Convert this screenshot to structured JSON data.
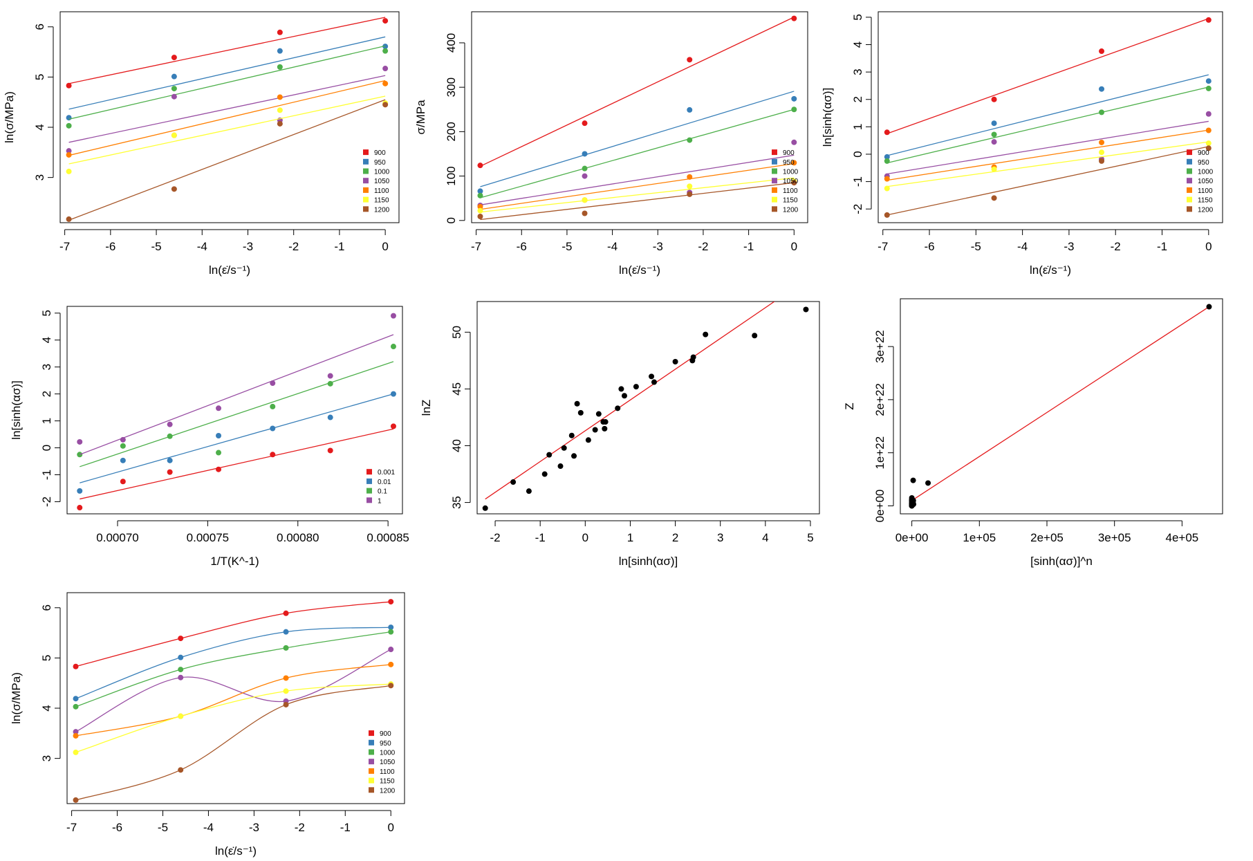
{
  "colors": {
    "900": "#e41a1c",
    "950": "#377eb8",
    "1000": "#4daf4a",
    "1050": "#984ea3",
    "1100": "#ff7f00",
    "1150": "#ffff33",
    "1200": "#a65628",
    "black": "#000000"
  },
  "chart_data": [
    {
      "id": "p1",
      "type": "scatter",
      "fit": "linear",
      "xlabel": "ln(ε̇/s⁻¹)",
      "ylabel": "ln(σ/MPa)",
      "xlim": [
        -7.1,
        0.3
      ],
      "ylim": [
        2.1,
        6.3
      ],
      "xticks": [
        -7,
        -6,
        -5,
        -4,
        -3,
        -2,
        -1,
        0
      ],
      "yticks": [
        3,
        4,
        5,
        6
      ],
      "x": [
        -6.91,
        -4.61,
        -2.3,
        0.0
      ],
      "legend": {
        "position": "bottom-right",
        "labels": [
          "900",
          "950",
          "1000",
          "1050",
          "1100",
          "1150",
          "1200"
        ]
      },
      "series": [
        {
          "name": "900",
          "color": "#e41a1c",
          "values": [
            4.83,
            5.39,
            5.89,
            6.12
          ],
          "fit": [
            4.87,
            6.19
          ]
        },
        {
          "name": "950",
          "color": "#377eb8",
          "values": [
            4.19,
            5.01,
            5.52,
            5.61
          ],
          "fit": [
            4.36,
            5.8
          ]
        },
        {
          "name": "1000",
          "color": "#4daf4a",
          "values": [
            4.03,
            4.77,
            5.2,
            5.52
          ],
          "fit": [
            4.16,
            5.62
          ]
        },
        {
          "name": "1050",
          "color": "#984ea3",
          "values": [
            3.53,
            4.61,
            4.14,
            5.17
          ],
          "fit": [
            3.7,
            5.03
          ]
        },
        {
          "name": "1100",
          "color": "#ff7f00",
          "values": [
            3.45,
            3.84,
            4.6,
            4.87
          ],
          "fit": [
            3.44,
            4.93
          ]
        },
        {
          "name": "1150",
          "color": "#ffff33",
          "values": [
            3.12,
            3.84,
            4.34,
            4.48
          ],
          "fit": [
            3.27,
            4.62
          ]
        },
        {
          "name": "1200",
          "color": "#a65628",
          "values": [
            2.17,
            2.77,
            4.07,
            4.45
          ],
          "fit": [
            2.15,
            4.55
          ]
        }
      ]
    },
    {
      "id": "p2",
      "type": "scatter",
      "fit": "linear",
      "xlabel": "ln(ε̇/s⁻¹)",
      "ylabel": "σ/MPa",
      "xlim": [
        -7.1,
        0.3
      ],
      "ylim": [
        -5,
        470
      ],
      "xticks": [
        -7,
        -6,
        -5,
        -4,
        -3,
        -2,
        -1,
        0
      ],
      "yticks": [
        0,
        100,
        200,
        300,
        400
      ],
      "x": [
        -6.91,
        -4.61,
        -2.3,
        0.0
      ],
      "legend": {
        "position": "bottom-right",
        "labels": [
          "900",
          "950",
          "1000",
          "1050",
          "1100",
          "1150",
          "1200"
        ]
      },
      "series": [
        {
          "name": "900",
          "color": "#e41a1c",
          "values": [
            124,
            219,
            362,
            455
          ],
          "fit": [
            122,
            458
          ]
        },
        {
          "name": "950",
          "color": "#377eb8",
          "values": [
            66,
            150,
            249,
            274
          ],
          "fit": [
            76,
            291
          ]
        },
        {
          "name": "1000",
          "color": "#4daf4a",
          "values": [
            56,
            117,
            181,
            250
          ],
          "fit": [
            51,
            250
          ]
        },
        {
          "name": "1050",
          "color": "#984ea3",
          "values": [
            34,
            100,
            63,
            176
          ],
          "fit": [
            35,
            147
          ]
        },
        {
          "name": "1100",
          "color": "#ff7f00",
          "values": [
            31,
            46,
            98,
            130
          ],
          "fit": [
            25,
            128
          ]
        },
        {
          "name": "1150",
          "color": "#ffff33",
          "values": [
            22,
            46,
            77,
            88
          ],
          "fit": [
            19,
            96
          ]
        },
        {
          "name": "1200",
          "color": "#a65628",
          "values": [
            9,
            16,
            59,
            85
          ],
          "fit": [
            2,
            85
          ]
        }
      ]
    },
    {
      "id": "p3",
      "type": "scatter",
      "fit": "linear",
      "xlabel": "ln(ε̇/s⁻¹)",
      "ylabel": "ln[sinh(ασ)]",
      "xlim": [
        -7.1,
        0.3
      ],
      "ylim": [
        -2.5,
        5.2
      ],
      "xticks": [
        -7,
        -6,
        -5,
        -4,
        -3,
        -2,
        -1,
        0
      ],
      "yticks": [
        -2,
        -1,
        0,
        1,
        2,
        3,
        4,
        5
      ],
      "x": [
        -6.91,
        -4.61,
        -2.3,
        0.0
      ],
      "legend": {
        "position": "bottom-right",
        "labels": [
          "900",
          "950",
          "1000",
          "1050",
          "1100",
          "1150",
          "1200"
        ]
      },
      "series": [
        {
          "name": "900",
          "color": "#e41a1c",
          "values": [
            0.8,
            2.0,
            3.76,
            4.9
          ],
          "fit": [
            0.75,
            4.95
          ]
        },
        {
          "name": "950",
          "color": "#377eb8",
          "values": [
            -0.1,
            1.13,
            2.38,
            2.67
          ],
          "fit": [
            -0.05,
            2.9
          ]
        },
        {
          "name": "1000",
          "color": "#4daf4a",
          "values": [
            -0.25,
            0.72,
            1.53,
            2.4
          ],
          "fit": [
            -0.32,
            2.45
          ]
        },
        {
          "name": "1050",
          "color": "#984ea3",
          "values": [
            -0.8,
            0.45,
            -0.18,
            1.47
          ],
          "fit": [
            -0.72,
            1.2
          ]
        },
        {
          "name": "1100",
          "color": "#ff7f00",
          "values": [
            -0.9,
            -0.47,
            0.43,
            0.87
          ],
          "fit": [
            -0.95,
            0.88
          ]
        },
        {
          "name": "1150",
          "color": "#ffff33",
          "values": [
            -1.25,
            -0.55,
            0.07,
            0.4
          ],
          "fit": [
            -1.18,
            0.45
          ]
        },
        {
          "name": "1200",
          "color": "#a65628",
          "values": [
            -2.22,
            -1.6,
            -0.25,
            0.22
          ],
          "fit": [
            -2.22,
            0.28
          ]
        }
      ]
    },
    {
      "id": "p4",
      "type": "scatter",
      "fit": "linear",
      "xlabel": "1/T(K^-1)",
      "ylabel": "ln[sinh(ασ)]",
      "xlim": [
        0.000672,
        0.000858
      ],
      "ylim": [
        -2.45,
        5.25
      ],
      "xticks": [
        0.0007,
        0.00075,
        0.0008,
        0.00085
      ],
      "xtick_labels": [
        "0.00070",
        "0.00075",
        "0.00080",
        "0.00085"
      ],
      "yticks": [
        -2,
        -1,
        0,
        1,
        2,
        3,
        4,
        5
      ],
      "x": [
        0.000679,
        0.000703,
        0.000729,
        0.000756,
        0.000786,
        0.000818,
        0.000853
      ],
      "legend": {
        "position": "bottom-right",
        "labels": [
          "0.001",
          "0.01",
          "0.1",
          "1"
        ]
      },
      "series": [
        {
          "name": "0.001",
          "color": "#e41a1c",
          "values": [
            -2.22,
            -1.25,
            -0.9,
            -0.8,
            -0.25,
            -0.1,
            0.8
          ],
          "fit": [
            -1.9,
            0.7
          ]
        },
        {
          "name": "0.01",
          "color": "#377eb8",
          "values": [
            -1.6,
            -0.47,
            -0.47,
            0.45,
            0.72,
            1.13,
            2.0
          ],
          "fit": [
            -1.3,
            2.0
          ]
        },
        {
          "name": "0.1",
          "color": "#4daf4a",
          "values": [
            -0.25,
            0.07,
            0.43,
            -0.18,
            1.53,
            2.38,
            3.76
          ],
          "fit": [
            -0.7,
            3.2
          ]
        },
        {
          "name": "1",
          "color": "#984ea3",
          "values": [
            0.22,
            0.3,
            0.87,
            1.47,
            2.4,
            2.67,
            4.9
          ],
          "fit": [
            -0.25,
            4.2
          ]
        }
      ]
    },
    {
      "id": "p5",
      "type": "scatter",
      "fit": "linear",
      "xlabel": "ln[sinh(ασ)]",
      "ylabel": "lnZ",
      "xlim": [
        -2.4,
        5.2
      ],
      "ylim": [
        34.0,
        52.7
      ],
      "xticks": [
        -2,
        -1,
        0,
        1,
        2,
        3,
        4,
        5
      ],
      "yticks": [
        35,
        40,
        45,
        50
      ],
      "ytick_rotate": true,
      "x": [
        -2.22,
        -1.6,
        -1.25,
        -0.9,
        -0.8,
        -0.55,
        -0.47,
        -0.3,
        -0.25,
        -0.18,
        -0.1,
        0.07,
        0.22,
        0.3,
        0.4,
        0.43,
        0.45,
        0.72,
        0.8,
        0.87,
        1.13,
        1.47,
        1.53,
        2.0,
        2.38,
        2.4,
        2.67,
        3.76,
        4.9
      ],
      "values": [
        34.5,
        36.8,
        36.0,
        37.5,
        39.2,
        38.2,
        39.8,
        40.9,
        39.1,
        43.7,
        42.9,
        40.5,
        41.4,
        42.8,
        42.1,
        41.5,
        42.1,
        43.3,
        45.0,
        44.4,
        45.2,
        46.1,
        45.6,
        47.4,
        47.5,
        47.8,
        49.8,
        49.7,
        52.0
      ],
      "fit_x": [
        -2.22,
        4.2
      ],
      "fit_y": [
        35.3,
        52.7
      ],
      "point_color": "#000000",
      "fit_color": "#e41a1c"
    },
    {
      "id": "p6",
      "type": "scatter",
      "fit": "linear",
      "xlabel": "[sinh(ασ)]^n",
      "ylabel": "Z",
      "xlim": [
        -17000,
        460000
      ],
      "ylim": [
        -1.5e+21,
        3.9e+22
      ],
      "xticks": [
        0,
        100000,
        200000,
        300000,
        400000
      ],
      "xtick_labels": [
        "0e+00",
        "1e+05",
        "2e+05",
        "3e+05",
        "4e+05"
      ],
      "yticks": [
        0,
        1e+22,
        2e+22,
        3e+22
      ],
      "ytick_labels": [
        "0e+00",
        "1e+22",
        "2e+22",
        "3e+22"
      ],
      "ytick_rotate": true,
      "x": [
        0,
        0,
        0,
        0,
        0,
        0,
        0,
        0,
        0,
        0,
        0,
        0,
        0,
        0,
        0,
        0,
        0,
        0,
        0,
        0,
        1000,
        1200,
        1500,
        1800,
        2000,
        2200,
        24000,
        2500,
        440000
      ],
      "values": [
        0,
        1e+19,
        2e+19,
        5e+19,
        8e+19,
        1e+20,
        1.5e+20,
        2e+20,
        3e+20,
        4e+20,
        5e+20,
        6e+20,
        8e+20,
        1e+21,
        1.2e+21,
        1.5e+21,
        2e+20,
        3e+20,
        1e+21,
        2e+20,
        2e+20,
        3e+20,
        5e+20,
        6e+20,
        4.8e+21,
        1e+21,
        4.3e+21,
        3e+20,
        3.75e+22
      ],
      "fit_x": [
        0,
        440000
      ],
      "fit_y": [
        1e+21,
        3.75e+22
      ],
      "point_color": "#000000",
      "fit_color": "#e41a1c"
    },
    {
      "id": "p7",
      "type": "line",
      "fit": "spline",
      "xlabel": "ln(ε̇/s⁻¹)",
      "ylabel": "ln(σ/MPa)",
      "xlim": [
        -7.1,
        0.3
      ],
      "ylim": [
        2.1,
        6.3
      ],
      "xticks": [
        -7,
        -6,
        -5,
        -4,
        -3,
        -2,
        -1,
        0
      ],
      "yticks": [
        3,
        4,
        5,
        6
      ],
      "x": [
        -6.91,
        -4.61,
        -2.3,
        0.0
      ],
      "legend": {
        "position": "bottom-right",
        "labels": [
          "900",
          "950",
          "1000",
          "1050",
          "1100",
          "1150",
          "1200"
        ]
      },
      "series": [
        {
          "name": "900",
          "color": "#e41a1c",
          "values": [
            4.83,
            5.39,
            5.89,
            6.12
          ]
        },
        {
          "name": "950",
          "color": "#377eb8",
          "values": [
            4.19,
            5.01,
            5.52,
            5.61
          ]
        },
        {
          "name": "1000",
          "color": "#4daf4a",
          "values": [
            4.03,
            4.77,
            5.2,
            5.52
          ]
        },
        {
          "name": "1050",
          "color": "#984ea3",
          "values": [
            3.53,
            4.61,
            4.14,
            5.17
          ]
        },
        {
          "name": "1100",
          "color": "#ff7f00",
          "values": [
            3.45,
            3.84,
            4.6,
            4.87
          ]
        },
        {
          "name": "1150",
          "color": "#ffff33",
          "values": [
            3.12,
            3.84,
            4.34,
            4.48
          ]
        },
        {
          "name": "1200",
          "color": "#a65628",
          "values": [
            2.17,
            2.77,
            4.07,
            4.45
          ]
        }
      ]
    }
  ]
}
